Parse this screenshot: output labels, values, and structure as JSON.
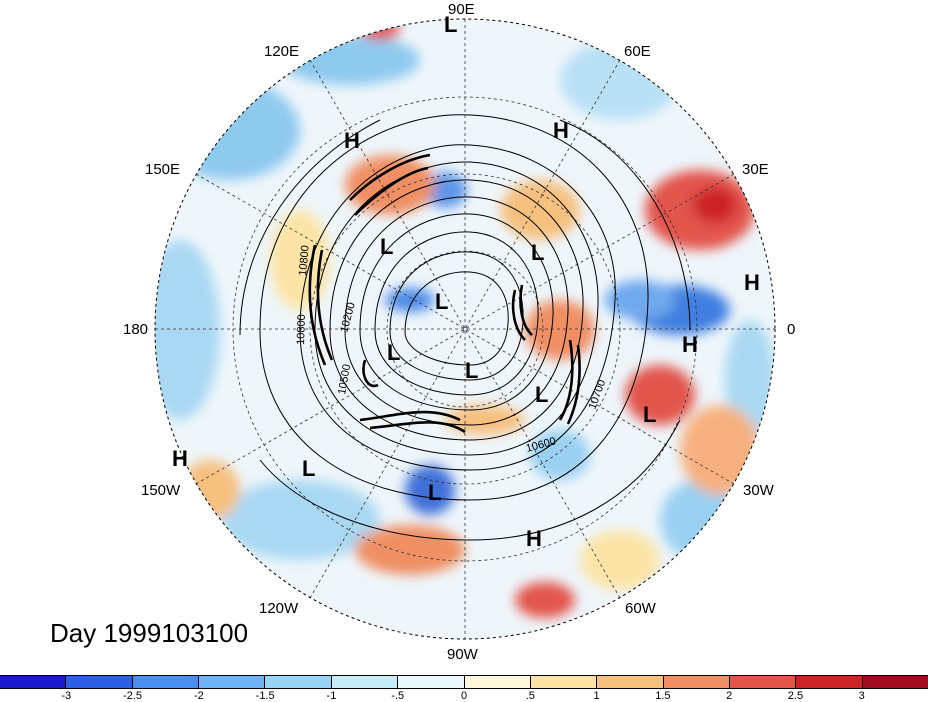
{
  "lon_labels": {
    "n90e": "90E",
    "n120e": "120E",
    "n60e": "60E",
    "n150e": "150E",
    "n30e": "30E",
    "n180": "180",
    "n0": "0",
    "n150w": "150W",
    "n30w": "30W",
    "n120w": "120W",
    "n60w": "60W",
    "n90w": "90W"
  },
  "centers": [
    "L",
    "H",
    "H",
    "L",
    "L",
    "L",
    "H",
    "L",
    "L",
    "H",
    "L",
    "L",
    "H",
    "L",
    "L",
    "H"
  ],
  "contour_labels": [
    "10800",
    "10200",
    "10800",
    "10500",
    "10600",
    "10700"
  ],
  "title": "Day 1999103100",
  "colorbar": {
    "colors": [
      "#1a1acc",
      "#2d5ee6",
      "#4a8ff0",
      "#6fb2f5",
      "#9ad4f5",
      "#c6ecf7",
      "#eaf7fb",
      "#fdf7dc",
      "#fbe4a6",
      "#f6c07f",
      "#ef8f63",
      "#e2554b",
      "#cc2327",
      "#a10b1f"
    ],
    "labels": [
      "-3",
      "-2.5",
      "-2",
      "-1.5",
      "-1",
      "-.5",
      "0",
      ".5",
      "1",
      "1.5",
      "2",
      "2.5",
      "3"
    ]
  }
}
